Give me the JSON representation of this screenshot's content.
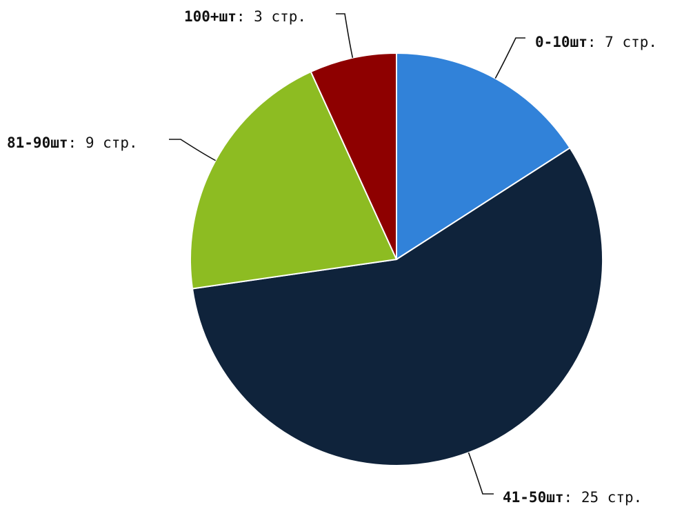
{
  "chart_data": {
    "type": "pie",
    "title": "",
    "label_separator": ": ",
    "slices": [
      {
        "name": "0-10шт",
        "value": 7,
        "value_label": "7 стр.",
        "color": "#3182D9"
      },
      {
        "name": "41-50шт",
        "value": 25,
        "value_label": "25 стр.",
        "color": "#0F233B"
      },
      {
        "name": "81-90шт",
        "value": 9,
        "value_label": "9 стр.",
        "color": "#8DBC22"
      },
      {
        "name": "100+шт",
        "value": 3,
        "value_label": "3 стр.",
        "color": "#8E0000"
      }
    ]
  }
}
